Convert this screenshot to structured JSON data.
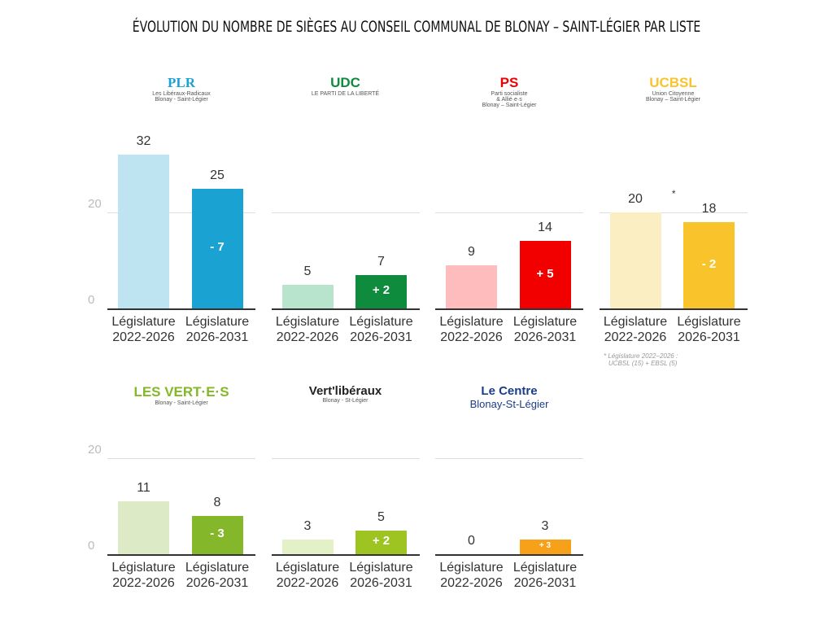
{
  "chart_data": {
    "type": "bar",
    "title": "ÉVOLUTION DU NOMBRE DE SIÈGES AU CONSEIL COMMUNAL DE BLONAY – SAINT-LÉGIER PAR LISTE",
    "categories": [
      "Législature 2022-2026",
      "Législature 2026-2031"
    ],
    "yticks": [
      0,
      20
    ],
    "grid": true,
    "panels": [
      {
        "party": "PLR",
        "logo_text": [
          "PLR",
          "Les Libéraux-Radicaux",
          "Blonay - Saint-Légier"
        ],
        "values": [
          32,
          25
        ],
        "diff": "- 7",
        "colors": [
          "#bfe4f1",
          "#1aa2d3"
        ]
      },
      {
        "party": "UDC",
        "logo_text": [
          "UDC",
          "LE PARTI DE LA LIBERTÉ"
        ],
        "values": [
          5,
          7
        ],
        "diff": "+ 2",
        "colors": [
          "#b8e3cd",
          "#0e8b3d"
        ]
      },
      {
        "party": "PS",
        "logo_text": [
          "PS",
          "Parti socialiste",
          "& Allié·e·s",
          "Blonay – Saint-Légier"
        ],
        "values": [
          9,
          14
        ],
        "diff": "+ 5",
        "colors": [
          "#ffbcbc",
          "#f20000"
        ]
      },
      {
        "party": "UCBSL",
        "logo_text": [
          "UCBSL",
          "Union Citoyenne",
          "Blonay – Saint-Légier"
        ],
        "values": [
          20,
          18
        ],
        "diff": "- 2",
        "marker": "*",
        "colors": [
          "#fbeec2",
          "#f9c42b"
        ]
      },
      {
        "party": "Les Vert·e·s",
        "logo_text": [
          "LES VERT·E·S",
          "Blonay - Saint-Légier"
        ],
        "values": [
          11,
          8
        ],
        "diff": "- 3",
        "colors": [
          "#dceac5",
          "#84b72a"
        ]
      },
      {
        "party": "Vert'libéraux",
        "logo_text": [
          "Vert'libéraux",
          "Blonay - St-Légier"
        ],
        "values": [
          3,
          5
        ],
        "diff": "+ 2",
        "colors": [
          "#e4f0c6",
          "#9dc421"
        ]
      },
      {
        "party": "Le Centre",
        "logo_text": [
          "Le Centre",
          "Blonay-St-Légier"
        ],
        "values": [
          0,
          3
        ],
        "diff": "+ 3",
        "colors": [
          "#fde2b8",
          "#f7a11b"
        ]
      }
    ],
    "footnote": [
      "* Législature 2022–2026 :",
      "UCBSL (15) + EBSL (5)"
    ]
  }
}
